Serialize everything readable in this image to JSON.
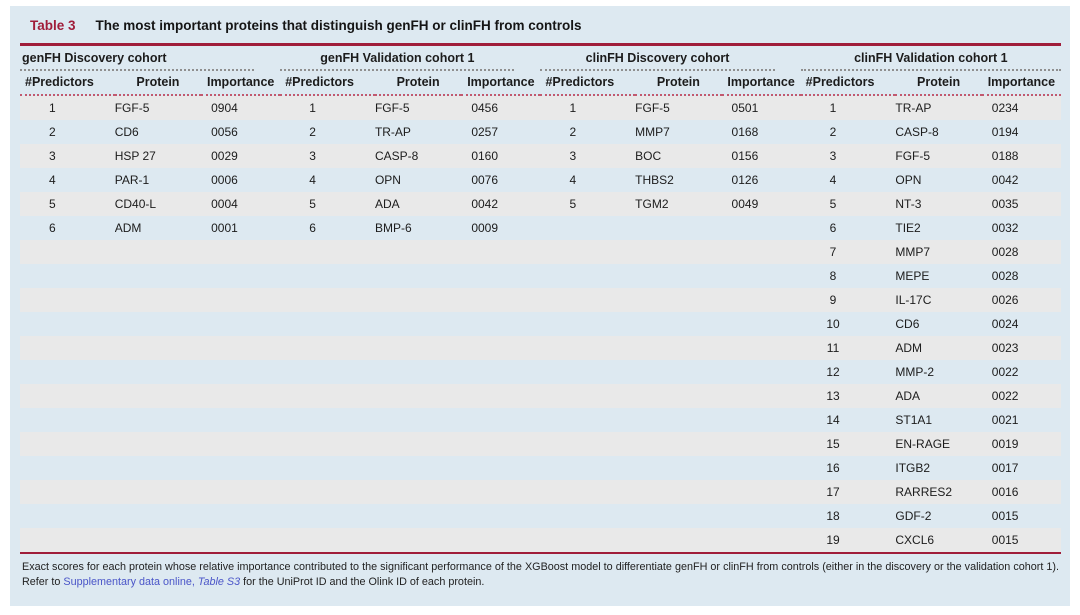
{
  "title": {
    "label": "Table 3",
    "text": "The most important proteins that distinguish genFH or clinFH from controls"
  },
  "columns": [
    "#Predictors",
    "Protein",
    "Importance"
  ],
  "groups": [
    {
      "header": "genFH Discovery cohort",
      "rows": [
        [
          "1",
          "FGF-5",
          "0904"
        ],
        [
          "2",
          "CD6",
          "0056"
        ],
        [
          "3",
          "HSP 27",
          "0029"
        ],
        [
          "4",
          "PAR-1",
          "0006"
        ],
        [
          "5",
          "CD40-L",
          "0004"
        ],
        [
          "6",
          "ADM",
          "0001"
        ]
      ]
    },
    {
      "header": "genFH Validation cohort 1",
      "rows": [
        [
          "1",
          "FGF-5",
          "0456"
        ],
        [
          "2",
          "TR-AP",
          "0257"
        ],
        [
          "3",
          "CASP-8",
          "0160"
        ],
        [
          "4",
          "OPN",
          "0076"
        ],
        [
          "5",
          "ADA",
          "0042"
        ],
        [
          "6",
          "BMP-6",
          "0009"
        ]
      ]
    },
    {
      "header": "clinFH Discovery cohort",
      "rows": [
        [
          "1",
          "FGF-5",
          "0501"
        ],
        [
          "2",
          "MMP7",
          "0168"
        ],
        [
          "3",
          "BOC",
          "0156"
        ],
        [
          "4",
          "THBS2",
          "0126"
        ],
        [
          "5",
          "TGM2",
          "0049"
        ]
      ]
    },
    {
      "header": "clinFH Validation cohort 1",
      "rows": [
        [
          "1",
          "TR-AP",
          "0234"
        ],
        [
          "2",
          "CASP-8",
          "0194"
        ],
        [
          "3",
          "FGF-5",
          "0188"
        ],
        [
          "4",
          "OPN",
          "0042"
        ],
        [
          "5",
          "NT-3",
          "0035"
        ],
        [
          "6",
          "TIE2",
          "0032"
        ],
        [
          "7",
          "MMP7",
          "0028"
        ],
        [
          "8",
          "MEPE",
          "0028"
        ],
        [
          "9",
          "IL-17C",
          "0026"
        ],
        [
          "10",
          "CD6",
          "0024"
        ],
        [
          "11",
          "ADM",
          "0023"
        ],
        [
          "12",
          "MMP-2",
          "0022"
        ],
        [
          "13",
          "ADA",
          "0022"
        ],
        [
          "14",
          "ST1A1",
          "0021"
        ],
        [
          "15",
          "EN-RAGE",
          "0019"
        ],
        [
          "16",
          "ITGB2",
          "0017"
        ],
        [
          "17",
          "RARRES2",
          "0016"
        ],
        [
          "18",
          "GDF-2",
          "0015"
        ],
        [
          "19",
          "CXCL6",
          "0015"
        ]
      ]
    }
  ],
  "footnote": {
    "text_before": "Exact scores for each protein whose relative importance contributed to the significant performance of the XGBoost model to differentiate genFH or clinFH from controls (either in the discovery or the validation cohort 1). Refer to ",
    "link_supplementary": "Supplementary data online,",
    "link_table_s3": "Table S3",
    "text_after": " for the UniProt ID and the Olink ID of each protein."
  },
  "colors": {
    "accent": "#A01D3A",
    "panel_background": "#DDE9F1",
    "row_stripe": "#E9E9E9",
    "link": "#4A55C8",
    "text": "#1C1C1C"
  }
}
